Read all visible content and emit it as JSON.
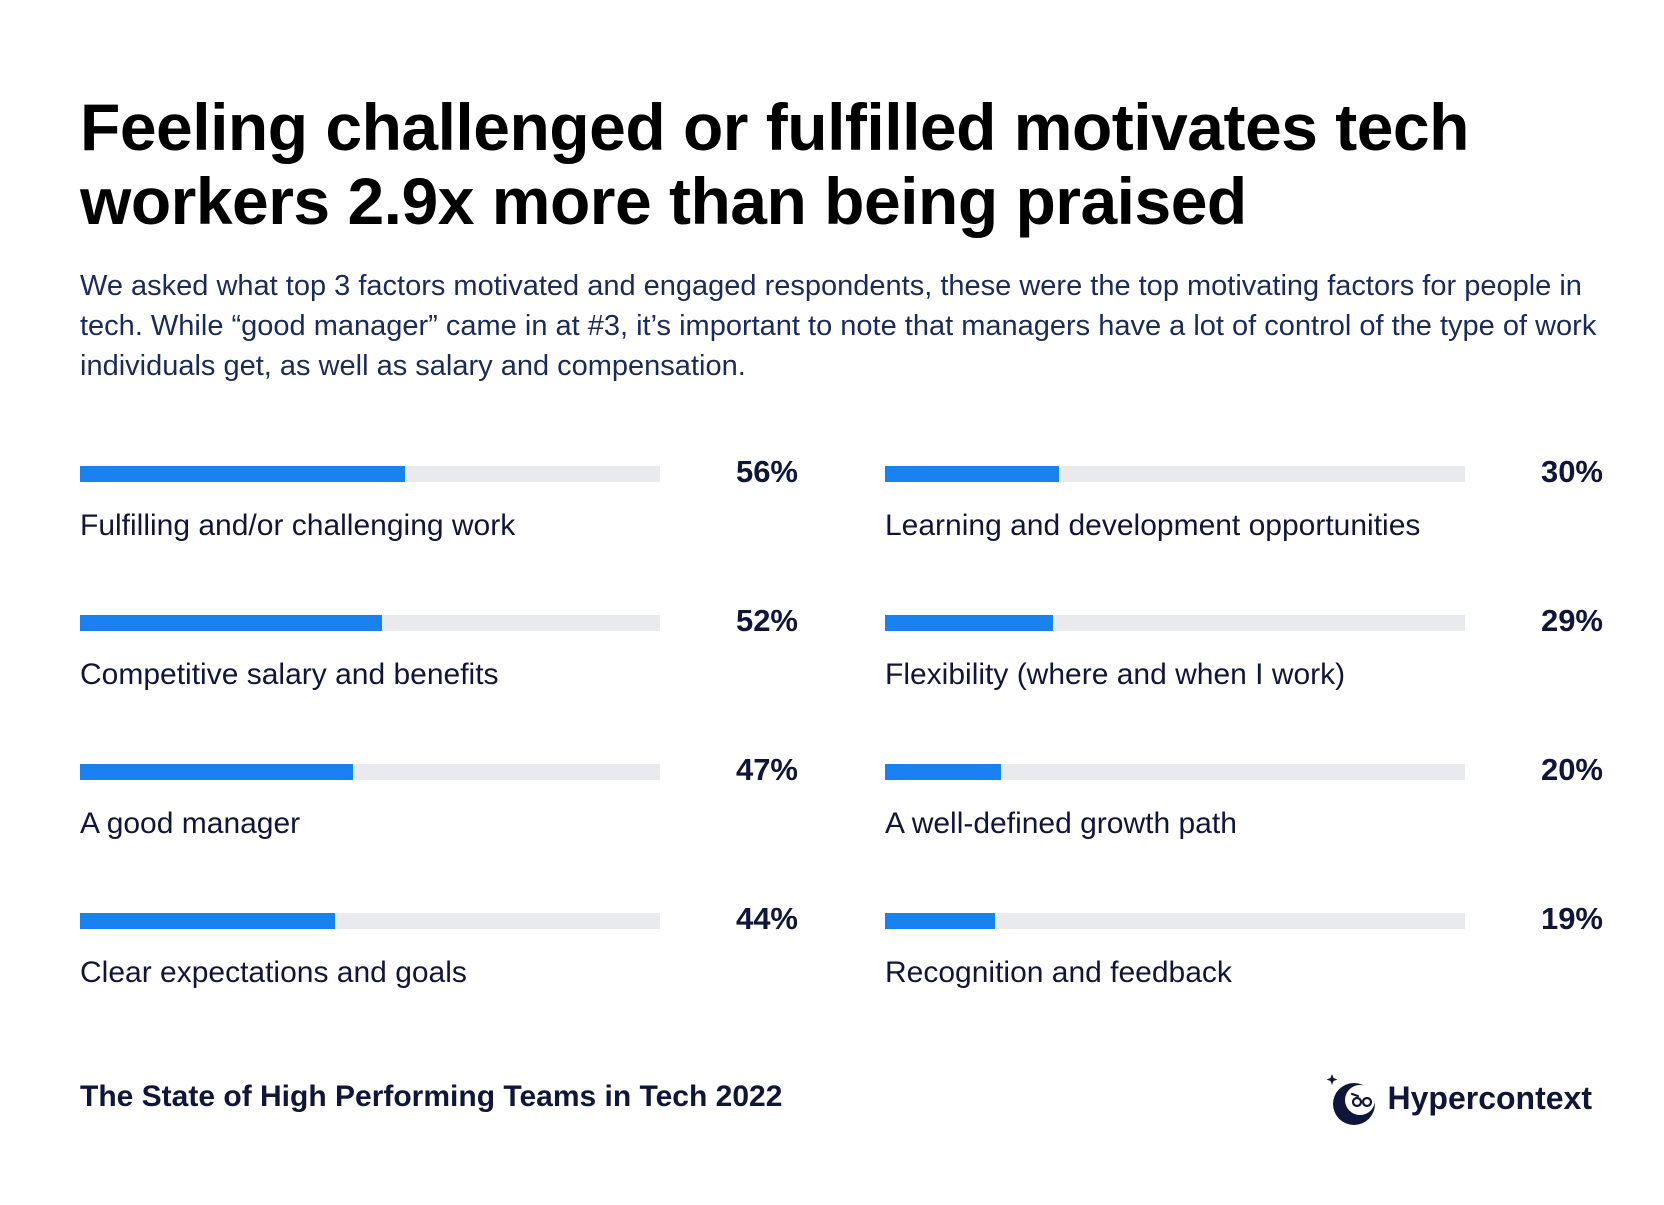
{
  "title": "Feeling challenged or fulfilled motivates tech workers 2.9x more than being praised",
  "subtitle": "We asked what top 3 factors motivated and engaged respondents, these were the top motivating factors for people in tech. While “good manager” came in at #3, it’s important to note that managers have a lot of control of the type of work individuals get, as well as salary and compensation.",
  "colors": {
    "bar_fill": "#1a82f0",
    "bar_track": "#e9eaee",
    "text": "#10163a"
  },
  "chart_data": {
    "type": "bar",
    "orientation": "horizontal",
    "ylim": [
      0,
      100
    ],
    "grid": false,
    "categories": [
      "Fulfilling and/or challenging work",
      "Competitive salary and benefits",
      "A good manager",
      "Clear expectations and goals",
      "Learning and development opportunities",
      "Flexibility (where and when I work)",
      "A well-defined growth path",
      "Recognition and feedback"
    ],
    "values": [
      56,
      52,
      47,
      44,
      30,
      29,
      20,
      19
    ],
    "value_labels": [
      "56%",
      "52%",
      "47%",
      "44%",
      "30%",
      "29%",
      "20%",
      "19%"
    ]
  },
  "footer": {
    "report_title": "The State of High Performing Teams in Tech 2022",
    "brand_name": "Hypercontext",
    "brand_icon": "hypercontext-logo-icon"
  }
}
